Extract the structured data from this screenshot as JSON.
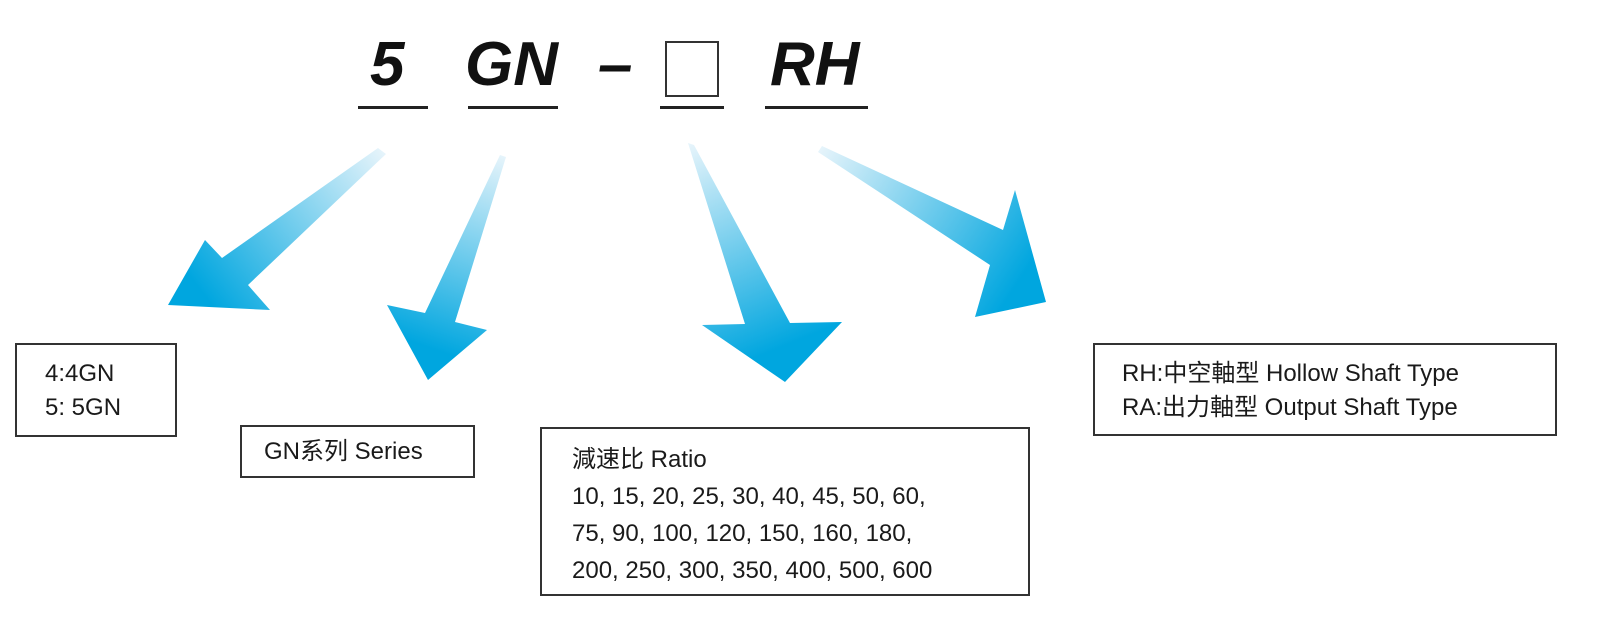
{
  "code": {
    "part1": "5",
    "part2": "GN",
    "separator": "–",
    "part4": "RH"
  },
  "boxes": {
    "size": {
      "lines": [
        "4:4GN",
        "5: 5GN"
      ]
    },
    "series": {
      "text": "GN系列 Series"
    },
    "ratio": {
      "title": "減速比 Ratio",
      "lines": [
        "10, 15, 20, 25, 30, 40, 45, 50, 60,",
        "75, 90, 100, 120, 150, 160, 180,",
        "200, 250, 300, 350, 400, 500, 600"
      ]
    },
    "shaft": {
      "lines": [
        "RH:中空軸型 Hollow Shaft Type",
        "RA:出力軸型 Output Shaft Type"
      ]
    }
  },
  "colors": {
    "arrow_head": "#00a6df",
    "arrow_tail": "#dff1fa"
  }
}
